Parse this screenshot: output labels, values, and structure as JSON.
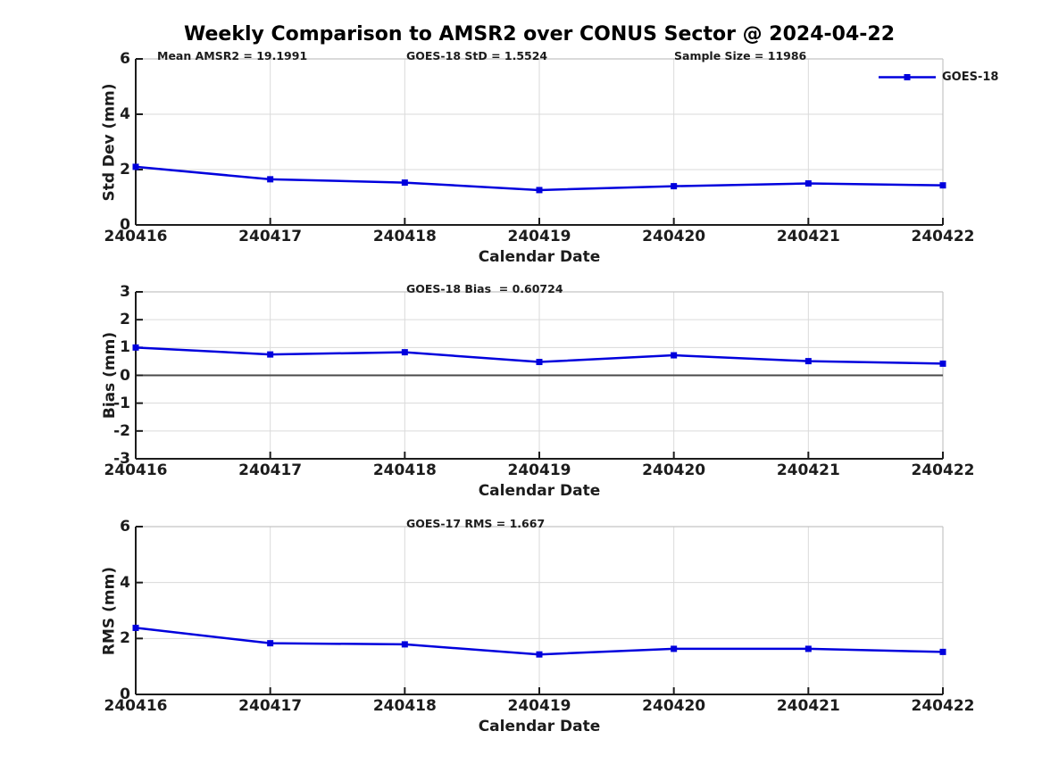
{
  "figure": {
    "title": "Weekly Comparison to AMSR2 over CONUS Sector @ 2024-04-22"
  },
  "legend": {
    "label": "GOES-18"
  },
  "colors": {
    "line": "#0000dd",
    "marker": "#0000dd",
    "grid": "#dadada",
    "box_edge": "#c4c4c4",
    "axis": "#1c1c1c",
    "zero_line": "#4a4a4a",
    "text": "#1c1c1c"
  },
  "chart_data": [
    {
      "type": "line",
      "annotations": [
        "Mean AMSR2 = 19.1991",
        "GOES-18 StD = 1.5524",
        "Sample Size = 11986"
      ],
      "categories": [
        "240416",
        "240417",
        "240418",
        "240419",
        "240420",
        "240421",
        "240422"
      ],
      "series": [
        {
          "name": "GOES-18",
          "values": [
            2.1,
            1.65,
            1.53,
            1.26,
            1.4,
            1.5,
            1.43
          ]
        }
      ],
      "xlabel": "Calendar Date",
      "ylabel": "Std Dev (mm)",
      "ylim": [
        0,
        6
      ],
      "yticks": [
        0,
        2,
        4,
        6
      ],
      "grid": true,
      "zero_line": false,
      "legend_position": "top-right-outside"
    },
    {
      "type": "line",
      "annotations": [
        "GOES-18 Bias  = 0.60724"
      ],
      "categories": [
        "240416",
        "240417",
        "240418",
        "240419",
        "240420",
        "240421",
        "240422"
      ],
      "series": [
        {
          "name": "GOES-18",
          "values": [
            1.0,
            0.75,
            0.83,
            0.48,
            0.72,
            0.51,
            0.42
          ]
        }
      ],
      "xlabel": "Calendar Date",
      "ylabel": "Bias (mm)",
      "ylim": [
        -3,
        3
      ],
      "yticks": [
        -3,
        -2,
        -1,
        0,
        1,
        2,
        3
      ],
      "grid": true,
      "zero_line": true,
      "legend_position": "none"
    },
    {
      "type": "line",
      "annotations": [
        "GOES-17 RMS = 1.667"
      ],
      "categories": [
        "240416",
        "240417",
        "240418",
        "240419",
        "240420",
        "240421",
        "240422"
      ],
      "series": [
        {
          "name": "GOES-18",
          "values": [
            2.38,
            1.83,
            1.79,
            1.43,
            1.63,
            1.63,
            1.52
          ]
        }
      ],
      "xlabel": "Calendar Date",
      "ylabel": "RMS (mm)",
      "ylim": [
        0,
        6
      ],
      "yticks": [
        0,
        2,
        4,
        6
      ],
      "grid": true,
      "zero_line": false,
      "legend_position": "none"
    }
  ]
}
